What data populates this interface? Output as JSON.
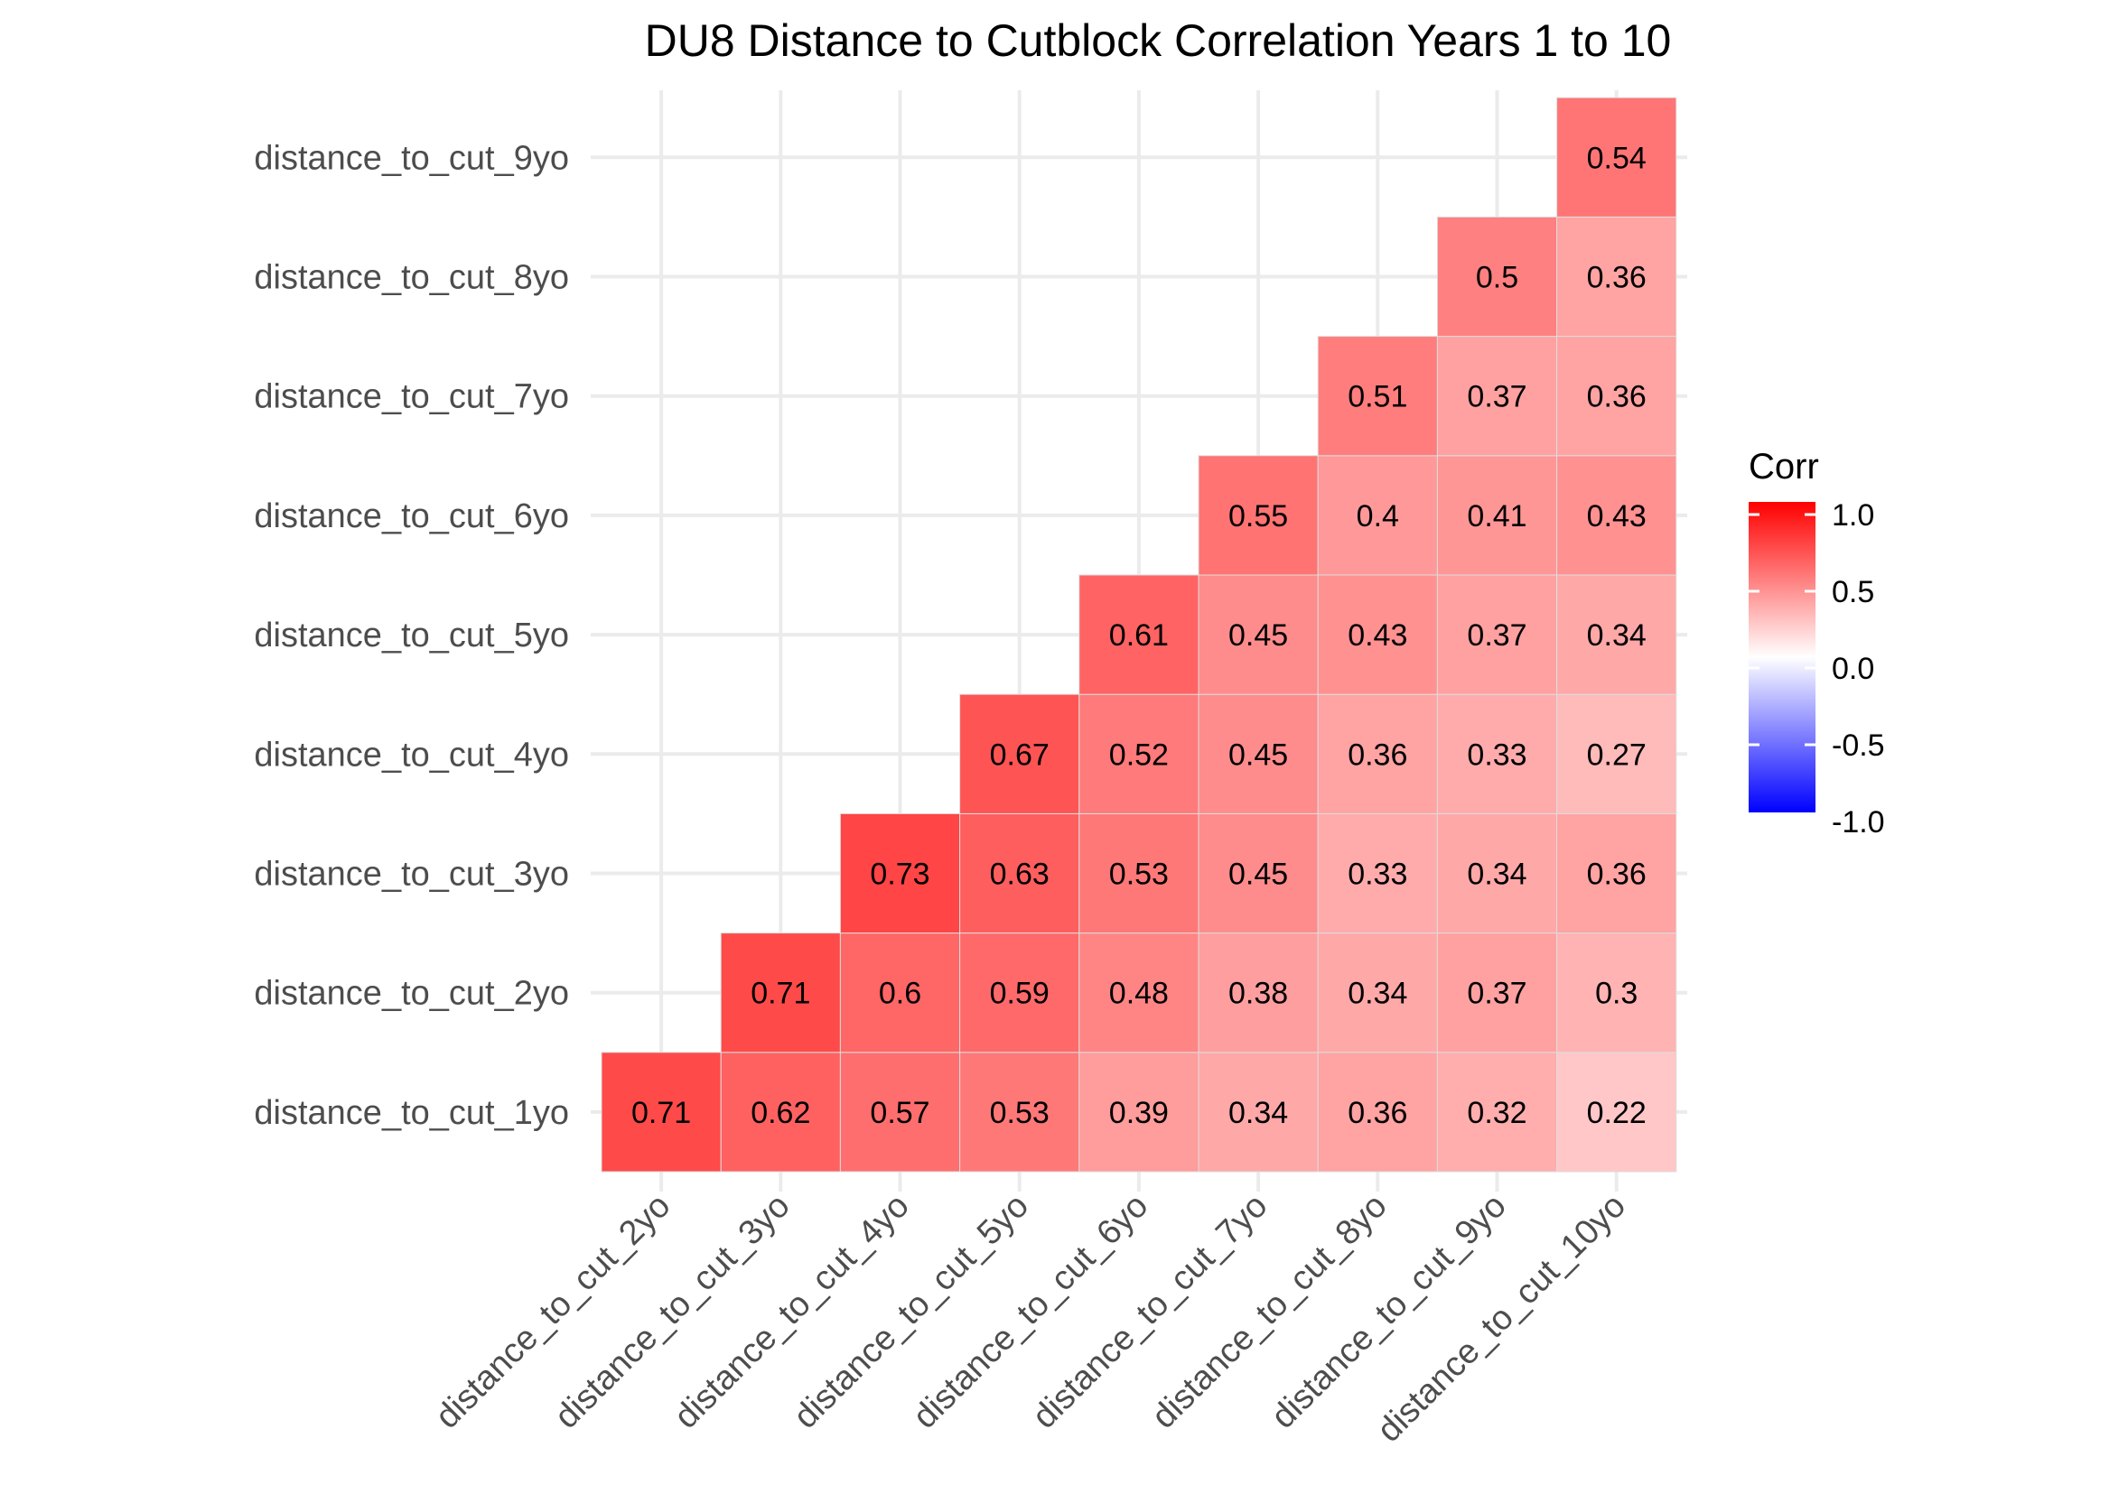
{
  "chart_data": {
    "type": "heatmap",
    "title": "DU8 Distance to Cutblock Correlation Years 1 to 10",
    "x_categories": [
      "distance_to_cut_2yo",
      "distance_to_cut_3yo",
      "distance_to_cut_4yo",
      "distance_to_cut_5yo",
      "distance_to_cut_6yo",
      "distance_to_cut_7yo",
      "distance_to_cut_8yo",
      "distance_to_cut_9yo",
      "distance_to_cut_10yo"
    ],
    "y_categories": [
      "distance_to_cut_1yo",
      "distance_to_cut_2yo",
      "distance_to_cut_3yo",
      "distance_to_cut_4yo",
      "distance_to_cut_5yo",
      "distance_to_cut_6yo",
      "distance_to_cut_7yo",
      "distance_to_cut_8yo",
      "distance_to_cut_9yo"
    ],
    "cells": [
      {
        "y": "distance_to_cut_1yo",
        "x": "distance_to_cut_2yo",
        "value": 0.71
      },
      {
        "y": "distance_to_cut_1yo",
        "x": "distance_to_cut_3yo",
        "value": 0.62
      },
      {
        "y": "distance_to_cut_1yo",
        "x": "distance_to_cut_4yo",
        "value": 0.57
      },
      {
        "y": "distance_to_cut_1yo",
        "x": "distance_to_cut_5yo",
        "value": 0.53
      },
      {
        "y": "distance_to_cut_1yo",
        "x": "distance_to_cut_6yo",
        "value": 0.39
      },
      {
        "y": "distance_to_cut_1yo",
        "x": "distance_to_cut_7yo",
        "value": 0.34
      },
      {
        "y": "distance_to_cut_1yo",
        "x": "distance_to_cut_8yo",
        "value": 0.36
      },
      {
        "y": "distance_to_cut_1yo",
        "x": "distance_to_cut_9yo",
        "value": 0.32
      },
      {
        "y": "distance_to_cut_1yo",
        "x": "distance_to_cut_10yo",
        "value": 0.22
      },
      {
        "y": "distance_to_cut_2yo",
        "x": "distance_to_cut_3yo",
        "value": 0.71
      },
      {
        "y": "distance_to_cut_2yo",
        "x": "distance_to_cut_4yo",
        "value": 0.6
      },
      {
        "y": "distance_to_cut_2yo",
        "x": "distance_to_cut_5yo",
        "value": 0.59
      },
      {
        "y": "distance_to_cut_2yo",
        "x": "distance_to_cut_6yo",
        "value": 0.48
      },
      {
        "y": "distance_to_cut_2yo",
        "x": "distance_to_cut_7yo",
        "value": 0.38
      },
      {
        "y": "distance_to_cut_2yo",
        "x": "distance_to_cut_8yo",
        "value": 0.34
      },
      {
        "y": "distance_to_cut_2yo",
        "x": "distance_to_cut_9yo",
        "value": 0.37
      },
      {
        "y": "distance_to_cut_2yo",
        "x": "distance_to_cut_10yo",
        "value": 0.3
      },
      {
        "y": "distance_to_cut_3yo",
        "x": "distance_to_cut_4yo",
        "value": 0.73
      },
      {
        "y": "distance_to_cut_3yo",
        "x": "distance_to_cut_5yo",
        "value": 0.63
      },
      {
        "y": "distance_to_cut_3yo",
        "x": "distance_to_cut_6yo",
        "value": 0.53
      },
      {
        "y": "distance_to_cut_3yo",
        "x": "distance_to_cut_7yo",
        "value": 0.45
      },
      {
        "y": "distance_to_cut_3yo",
        "x": "distance_to_cut_8yo",
        "value": 0.33
      },
      {
        "y": "distance_to_cut_3yo",
        "x": "distance_to_cut_9yo",
        "value": 0.34
      },
      {
        "y": "distance_to_cut_3yo",
        "x": "distance_to_cut_10yo",
        "value": 0.36
      },
      {
        "y": "distance_to_cut_4yo",
        "x": "distance_to_cut_5yo",
        "value": 0.67
      },
      {
        "y": "distance_to_cut_4yo",
        "x": "distance_to_cut_6yo",
        "value": 0.52
      },
      {
        "y": "distance_to_cut_4yo",
        "x": "distance_to_cut_7yo",
        "value": 0.45
      },
      {
        "y": "distance_to_cut_4yo",
        "x": "distance_to_cut_8yo",
        "value": 0.36
      },
      {
        "y": "distance_to_cut_4yo",
        "x": "distance_to_cut_9yo",
        "value": 0.33
      },
      {
        "y": "distance_to_cut_4yo",
        "x": "distance_to_cut_10yo",
        "value": 0.27
      },
      {
        "y": "distance_to_cut_5yo",
        "x": "distance_to_cut_6yo",
        "value": 0.61
      },
      {
        "y": "distance_to_cut_5yo",
        "x": "distance_to_cut_7yo",
        "value": 0.45
      },
      {
        "y": "distance_to_cut_5yo",
        "x": "distance_to_cut_8yo",
        "value": 0.43
      },
      {
        "y": "distance_to_cut_5yo",
        "x": "distance_to_cut_9yo",
        "value": 0.37
      },
      {
        "y": "distance_to_cut_5yo",
        "x": "distance_to_cut_10yo",
        "value": 0.34
      },
      {
        "y": "distance_to_cut_6yo",
        "x": "distance_to_cut_7yo",
        "value": 0.55
      },
      {
        "y": "distance_to_cut_6yo",
        "x": "distance_to_cut_8yo",
        "value": 0.4
      },
      {
        "y": "distance_to_cut_6yo",
        "x": "distance_to_cut_9yo",
        "value": 0.41
      },
      {
        "y": "distance_to_cut_6yo",
        "x": "distance_to_cut_10yo",
        "value": 0.43
      },
      {
        "y": "distance_to_cut_7yo",
        "x": "distance_to_cut_8yo",
        "value": 0.51
      },
      {
        "y": "distance_to_cut_7yo",
        "x": "distance_to_cut_9yo",
        "value": 0.37
      },
      {
        "y": "distance_to_cut_7yo",
        "x": "distance_to_cut_10yo",
        "value": 0.36
      },
      {
        "y": "distance_to_cut_8yo",
        "x": "distance_to_cut_9yo",
        "value": 0.5
      },
      {
        "y": "distance_to_cut_8yo",
        "x": "distance_to_cut_10yo",
        "value": 0.36
      },
      {
        "y": "distance_to_cut_9yo",
        "x": "distance_to_cut_10yo",
        "value": 0.54
      }
    ],
    "legend": {
      "title": "Corr",
      "breaks": [
        "1.0",
        "0.5",
        "0.0",
        "-0.5",
        "-1.0"
      ],
      "range": [
        -1,
        1
      ],
      "low_color": "#0000ff",
      "mid_color": "#ffffff",
      "high_color": "#ff0000",
      "placement": "right"
    },
    "grid": true
  }
}
